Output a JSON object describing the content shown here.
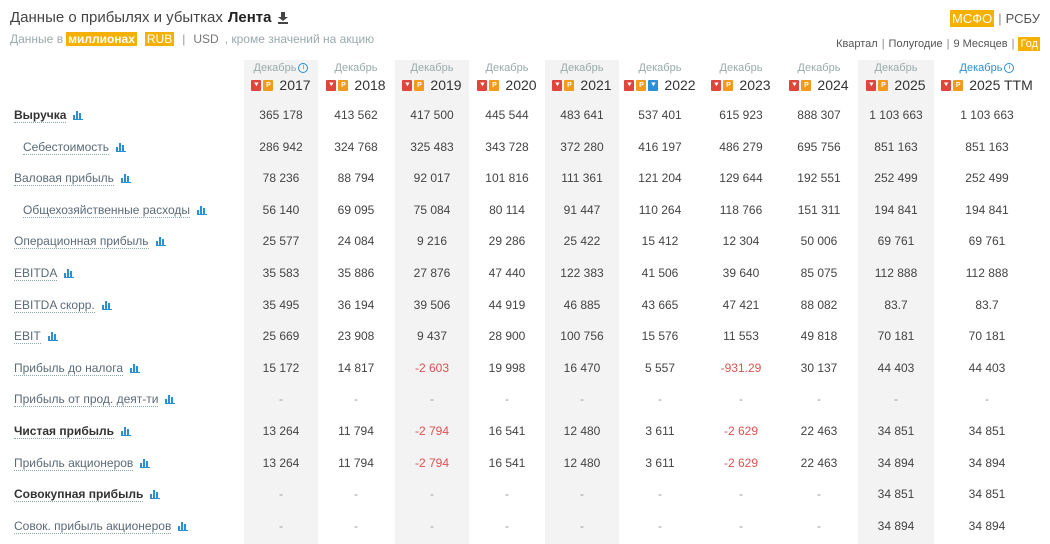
{
  "title": {
    "prefix": "Данные о прибылях и убытках",
    "company": "Лента"
  },
  "subtitle": {
    "prefix": "Данные в",
    "unit": "миллионах",
    "currency_rub": "RUB",
    "currency_usd": "USD",
    "suffix": ", кроме значений на акцию"
  },
  "standards": {
    "msfo": "МСФО",
    "rsbu": "РСБУ",
    "active": "МСФО"
  },
  "periods": {
    "items": [
      "Квартал",
      "Полугодие",
      "9 Месяцев",
      "Год"
    ],
    "active": "Год"
  },
  "columns": [
    {
      "month": "Декабрь",
      "year": "2017",
      "info": true,
      "blue_doc": false
    },
    {
      "month": "Декабрь",
      "year": "2018",
      "info": false,
      "blue_doc": false
    },
    {
      "month": "Декабрь",
      "year": "2019",
      "info": false,
      "blue_doc": false
    },
    {
      "month": "Декабрь",
      "year": "2020",
      "info": false,
      "blue_doc": false
    },
    {
      "month": "Декабрь",
      "year": "2021",
      "info": false,
      "blue_doc": false
    },
    {
      "month": "Декабрь",
      "year": "2022",
      "info": false,
      "blue_doc": true
    },
    {
      "month": "Декабрь",
      "year": "2023",
      "info": false,
      "blue_doc": false
    },
    {
      "month": "Декабрь",
      "year": "2024",
      "info": false,
      "blue_doc": false
    },
    {
      "month": "Декабрь",
      "year": "2025",
      "info": false,
      "blue_doc": false
    },
    {
      "month": "Декабрь",
      "year": "2025 TTM",
      "info": true,
      "blue_doc": false,
      "ttm": true
    }
  ],
  "rows": [
    {
      "label": "Выручка",
      "bold": true,
      "indent": false,
      "values": [
        "365 178",
        "413 562",
        "417 500",
        "445 544",
        "483 641",
        "537 401",
        "615 923",
        "888 307",
        "1 103 663",
        "1 103 663"
      ]
    },
    {
      "label": "Себестоимость",
      "bold": false,
      "indent": true,
      "values": [
        "286 942",
        "324 768",
        "325 483",
        "343 728",
        "372 280",
        "416 197",
        "486 279",
        "695 756",
        "851 163",
        "851 163"
      ]
    },
    {
      "label": "Валовая прибыль",
      "bold": false,
      "indent": false,
      "values": [
        "78 236",
        "88 794",
        "92 017",
        "101 816",
        "111 361",
        "121 204",
        "129 644",
        "192 551",
        "252 499",
        "252 499"
      ]
    },
    {
      "label": "Общехозяйственные расходы",
      "bold": false,
      "indent": true,
      "values": [
        "56 140",
        "69 095",
        "75 084",
        "80 114",
        "91 447",
        "110 264",
        "118 766",
        "151 311",
        "194 841",
        "194 841"
      ]
    },
    {
      "label": "Операционная прибыль",
      "bold": false,
      "indent": false,
      "values": [
        "25 577",
        "24 084",
        "9 216",
        "29 286",
        "25 422",
        "15 412",
        "12 304",
        "50 006",
        "69 761",
        "69 761"
      ]
    },
    {
      "label": "EBITDA",
      "bold": false,
      "indent": false,
      "values": [
        "35 583",
        "35 886",
        "27 876",
        "47 440",
        "122 383",
        "41 506",
        "39 640",
        "85 075",
        "112 888",
        "112 888"
      ]
    },
    {
      "label": "EBITDA скорр.",
      "bold": false,
      "indent": false,
      "values": [
        "35 495",
        "36 194",
        "39 506",
        "44 919",
        "46 885",
        "43 665",
        "47 421",
        "88 082",
        "83.7",
        "83.7"
      ]
    },
    {
      "label": "EBIT",
      "bold": false,
      "indent": false,
      "values": [
        "25 669",
        "23 908",
        "9 437",
        "28 900",
        "100 756",
        "15 576",
        "11 553",
        "49 818",
        "70 181",
        "70 181"
      ]
    },
    {
      "label": "Прибыль до налога",
      "bold": false,
      "indent": false,
      "values": [
        "15 172",
        "14 817",
        "-2 603",
        "19 998",
        "16 470",
        "5 557",
        "-931.29",
        "30 137",
        "44 403",
        "44 403"
      ]
    },
    {
      "label": "Прибыль от прод. деят-ти",
      "bold": false,
      "indent": false,
      "values": [
        "-",
        "-",
        "-",
        "-",
        "-",
        "-",
        "-",
        "-",
        "-",
        "-"
      ]
    },
    {
      "label": "Чистая прибыль",
      "bold": true,
      "indent": false,
      "values": [
        "13 264",
        "11 794",
        "-2 794",
        "16 541",
        "12 480",
        "3 611",
        "-2 629",
        "22 463",
        "34 851",
        "34 851"
      ]
    },
    {
      "label": "Прибыль акционеров",
      "bold": false,
      "indent": false,
      "values": [
        "13 264",
        "11 794",
        "-2 794",
        "16 541",
        "12 480",
        "3 611",
        "-2 629",
        "22 463",
        "34 894",
        "34 894"
      ]
    },
    {
      "label": "Совокупная прибыль",
      "bold": true,
      "indent": false,
      "values": [
        "-",
        "-",
        "-",
        "-",
        "-",
        "-",
        "-",
        "-",
        "34 851",
        "34 851"
      ]
    },
    {
      "label": "Совок. прибыль акционеров",
      "bold": false,
      "indent": false,
      "values": [
        "-",
        "-",
        "-",
        "-",
        "-",
        "-",
        "-",
        "-",
        "34 894",
        "34 894"
      ]
    }
  ],
  "colors": {
    "accent": "#f5b000",
    "negative": "#e05050",
    "link": "#2a8fd6",
    "shade": "#f3f3f3"
  },
  "icons": {
    "download": "download-icon",
    "chart": "bar-chart-icon",
    "pdf": "pdf-icon",
    "doc": "report-icon",
    "info": "info-icon"
  }
}
